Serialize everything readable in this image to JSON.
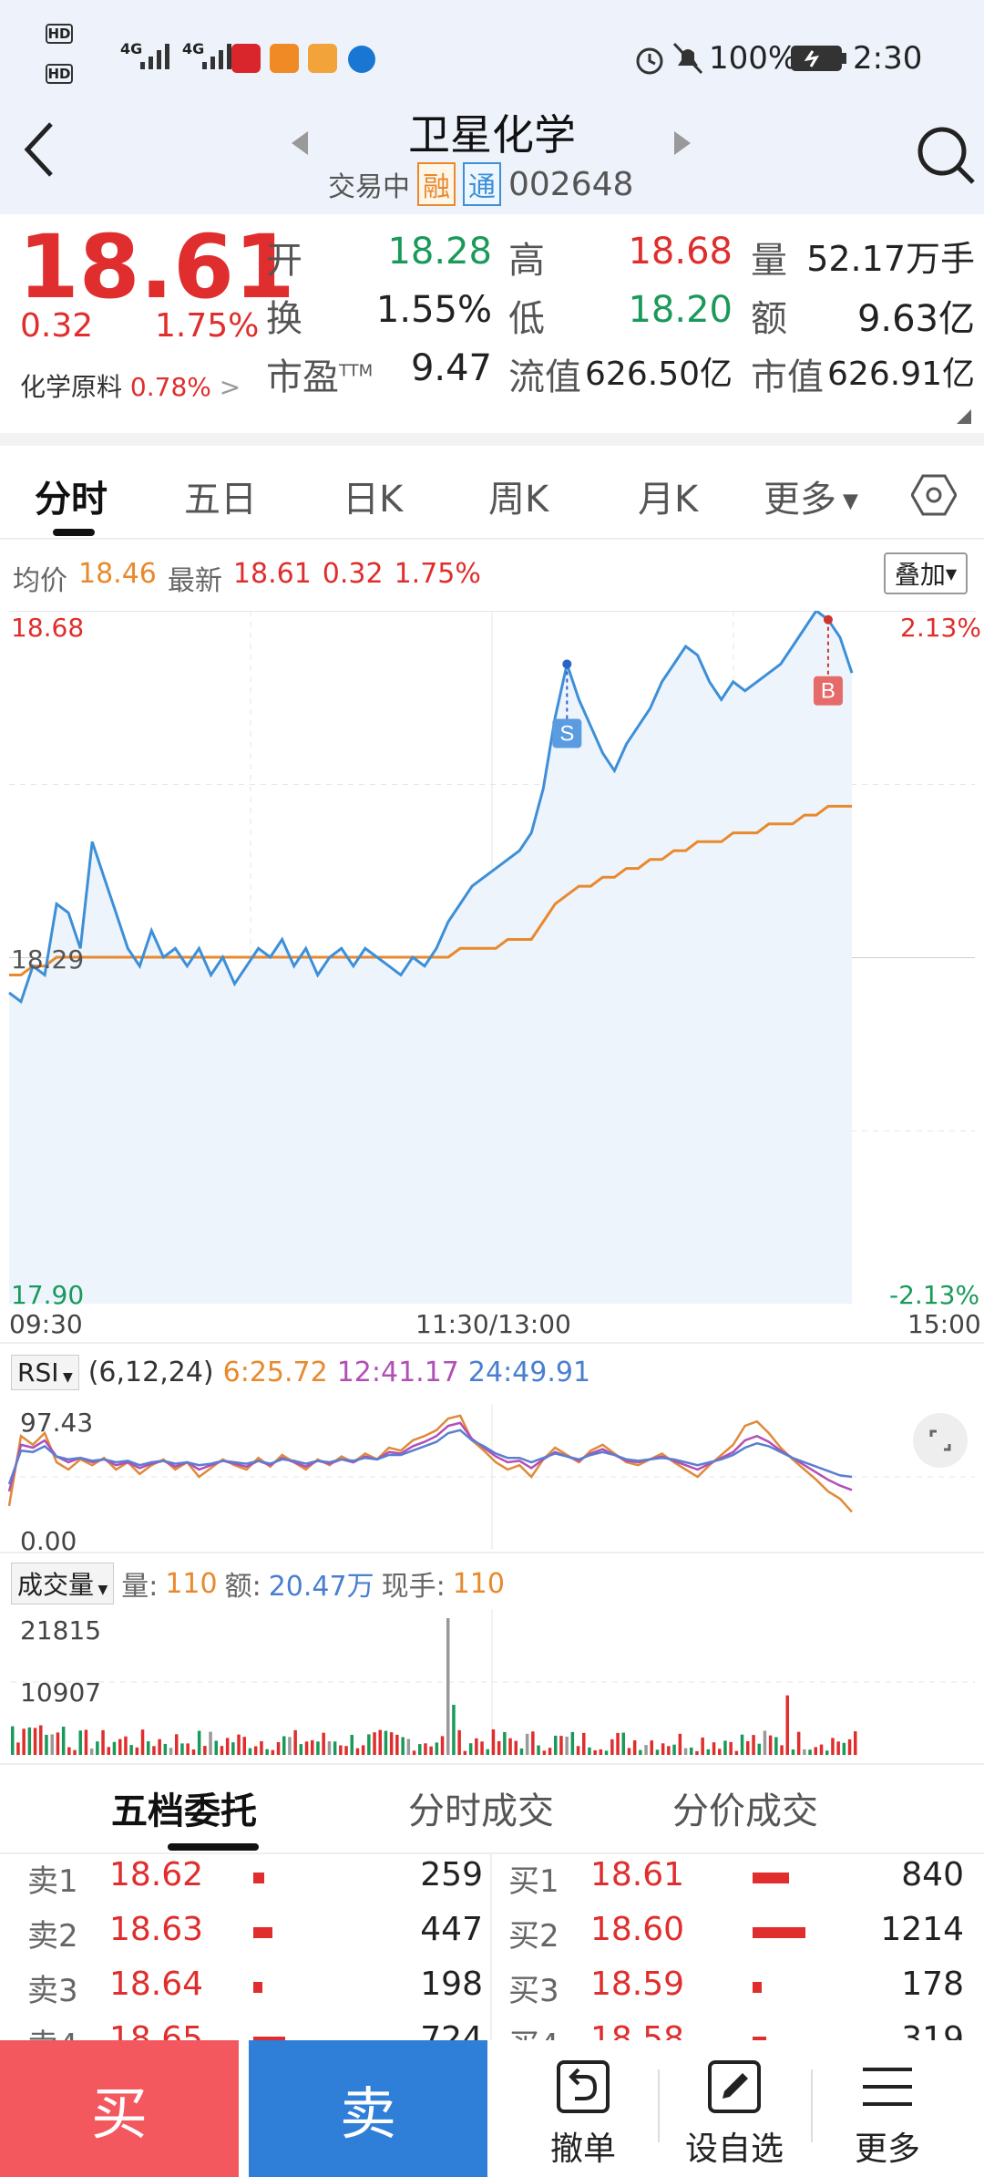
{
  "status_bar": {
    "hd1": "HD",
    "hd2": "HD",
    "sim1": "4G",
    "sim2": "4G",
    "battery": "100%",
    "time": "2:30"
  },
  "header": {
    "stock_name": "卫星化学",
    "status": "交易中",
    "badge_rong": "融",
    "badge_tong": "通",
    "code": "002648"
  },
  "quote": {
    "price": "18.61",
    "change": "0.32",
    "change_pct": "1.75%",
    "sector": "化学原料",
    "sector_pct": "0.78%",
    "open_label": "开",
    "open": "18.28",
    "high_label": "高",
    "high": "18.68",
    "vol_label": "量",
    "vol": "52.17万手",
    "turnover_label": "换",
    "turnover": "1.55%",
    "low_label": "低",
    "low": "18.20",
    "amount_label": "额",
    "amount": "9.63亿",
    "pe_label": "市盈",
    "pe_sup": "TTM",
    "pe": "9.47",
    "float_label": "流值",
    "float": "626.50亿",
    "mcap_label": "市值",
    "mcap": "626.91亿"
  },
  "tabs": [
    {
      "label": "分时"
    },
    {
      "label": "五日"
    },
    {
      "label": "日K"
    },
    {
      "label": "周K"
    },
    {
      "label": "月K"
    },
    {
      "label": "更多"
    }
  ],
  "intraday": {
    "avg_label": "均价",
    "avg": "18.46",
    "latest_label": "最新",
    "latest": "18.61",
    "chg": "0.32",
    "chg_pct": "1.75%",
    "overlay_button": "叠加",
    "y_top": "18.68",
    "y_mid": "18.29",
    "y_bot": "17.90",
    "pct_top": "2.13%",
    "pct_bot": "-2.13%",
    "t_start": "09:30",
    "t_mid": "11:30/13:00",
    "t_end": "15:00",
    "marker_s": "S",
    "marker_b": "B"
  },
  "rsi": {
    "label": "RSI",
    "params": "(6,12,24)",
    "r6": "6:25.72",
    "r12": "12:41.17",
    "r24": "24:49.91",
    "top": "97.43",
    "bot": "0.00"
  },
  "volume": {
    "label": "成交量",
    "vol_label": "量:",
    "vol": "110",
    "amt_label": "额:",
    "amt": "20.47万",
    "now_label": "现手:",
    "now": "110",
    "top": "21815",
    "mid": "10907"
  },
  "book_tabs": [
    {
      "label": "五档委托"
    },
    {
      "label": "分时成交"
    },
    {
      "label": "分价成交"
    }
  ],
  "asks": [
    {
      "label": "卖1",
      "price": "18.62",
      "qty": "259",
      "bar": 0.21
    },
    {
      "label": "卖2",
      "price": "18.63",
      "qty": "447",
      "bar": 0.37
    },
    {
      "label": "卖3",
      "price": "18.64",
      "qty": "198",
      "bar": 0.16
    },
    {
      "label": "卖4",
      "price": "18.65",
      "qty": "724",
      "bar": 0.6
    }
  ],
  "bids": [
    {
      "label": "买1",
      "price": "18.61",
      "qty": "840",
      "bar": 0.69
    },
    {
      "label": "买2",
      "price": "18.60",
      "qty": "1214",
      "bar": 1.0
    },
    {
      "label": "买3",
      "price": "18.59",
      "qty": "178",
      "bar": 0.15
    },
    {
      "label": "买4",
      "price": "18.58",
      "qty": "319",
      "bar": 0.26
    }
  ],
  "bottom_bar": {
    "buy": "买",
    "sell": "卖",
    "cancel": "撤单",
    "watch": "设自选",
    "more": "更多"
  },
  "colors": {
    "up": "#e02d2d",
    "down": "#1a9a5a",
    "price_line": "#3d8fd8",
    "avg_line": "#e8892c"
  },
  "chart_data": {
    "type": "line",
    "price_range": [
      17.9,
      18.68
    ],
    "series": [
      {
        "name": "最新",
        "values": [
          18.25,
          18.24,
          18.28,
          18.27,
          18.35,
          18.34,
          18.3,
          18.42,
          18.38,
          18.34,
          18.3,
          18.28,
          18.32,
          18.29,
          18.3,
          18.28,
          18.3,
          18.27,
          18.29,
          18.26,
          18.28,
          18.3,
          18.29,
          18.31,
          18.28,
          18.3,
          18.27,
          18.29,
          18.3,
          18.28,
          18.3,
          18.29,
          18.28,
          18.27,
          18.29,
          18.28,
          18.3,
          18.33,
          18.35,
          18.37,
          18.38,
          18.39,
          18.4,
          18.41,
          18.43,
          18.48,
          18.56,
          18.62,
          18.58,
          18.55,
          18.52,
          18.5,
          18.53,
          18.55,
          18.57,
          18.6,
          18.62,
          18.64,
          18.63,
          18.6,
          18.58,
          18.6,
          18.59,
          18.6,
          18.61,
          18.62,
          18.64,
          18.66,
          18.68,
          18.67,
          18.65,
          18.61
        ]
      },
      {
        "name": "均价",
        "values": [
          18.27,
          18.27,
          18.28,
          18.28,
          18.29,
          18.29,
          18.29,
          18.29,
          18.29,
          18.29,
          18.29,
          18.29,
          18.29,
          18.29,
          18.29,
          18.29,
          18.29,
          18.29,
          18.29,
          18.29,
          18.29,
          18.29,
          18.29,
          18.29,
          18.29,
          18.29,
          18.29,
          18.29,
          18.29,
          18.29,
          18.29,
          18.29,
          18.29,
          18.29,
          18.29,
          18.29,
          18.29,
          18.29,
          18.3,
          18.3,
          18.3,
          18.3,
          18.31,
          18.31,
          18.31,
          18.33,
          18.35,
          18.36,
          18.37,
          18.37,
          18.38,
          18.38,
          18.39,
          18.39,
          18.4,
          18.4,
          18.41,
          18.41,
          18.42,
          18.42,
          18.42,
          18.43,
          18.43,
          18.43,
          18.44,
          18.44,
          18.44,
          18.45,
          18.45,
          18.46,
          18.46,
          18.46
        ]
      }
    ],
    "rsi_series": [
      {
        "name": "6",
        "values": [
          30,
          78,
          72,
          80,
          60,
          55,
          62,
          58,
          63,
          55,
          60,
          52,
          58,
          62,
          55,
          60,
          50,
          56,
          62,
          58,
          55,
          63,
          57,
          65,
          60,
          55,
          62,
          58,
          64,
          60,
          66,
          62,
          70,
          68,
          75,
          78,
          82,
          90,
          92,
          75,
          68,
          60,
          55,
          58,
          50,
          62,
          70,
          65,
          60,
          68,
          72,
          66,
          60,
          58,
          62,
          66,
          60,
          55,
          50,
          58,
          65,
          72,
          85,
          88,
          80,
          70,
          62,
          55,
          48,
          40,
          35,
          26
        ]
      },
      {
        "name": "12",
        "values": [
          40,
          72,
          70,
          75,
          64,
          60,
          63,
          60,
          62,
          58,
          60,
          56,
          59,
          61,
          57,
          60,
          55,
          58,
          61,
          59,
          57,
          61,
          58,
          63,
          60,
          57,
          61,
          59,
          62,
          60,
          64,
          62,
          67,
          66,
          71,
          74,
          78,
          85,
          87,
          76,
          70,
          64,
          60,
          61,
          56,
          62,
          67,
          64,
          61,
          66,
          69,
          65,
          61,
          60,
          62,
          64,
          61,
          58,
          55,
          59,
          63,
          67,
          75,
          78,
          74,
          68,
          63,
          58,
          53,
          48,
          44,
          41
        ]
      },
      {
        "name": "24",
        "values": [
          45,
          68,
          67,
          71,
          64,
          62,
          63,
          61,
          62,
          60,
          61,
          58,
          60,
          61,
          59,
          60,
          58,
          59,
          61,
          60,
          59,
          61,
          59,
          62,
          61,
          59,
          61,
          60,
          62,
          61,
          63,
          62,
          65,
          65,
          68,
          71,
          74,
          80,
          82,
          75,
          71,
          66,
          63,
          63,
          60,
          63,
          66,
          64,
          62,
          65,
          67,
          65,
          62,
          61,
          62,
          63,
          62,
          60,
          58,
          60,
          62,
          65,
          70,
          73,
          71,
          67,
          63,
          60,
          57,
          54,
          51,
          50
        ]
      }
    ],
    "volume_range": [
      0,
      21815
    ]
  }
}
